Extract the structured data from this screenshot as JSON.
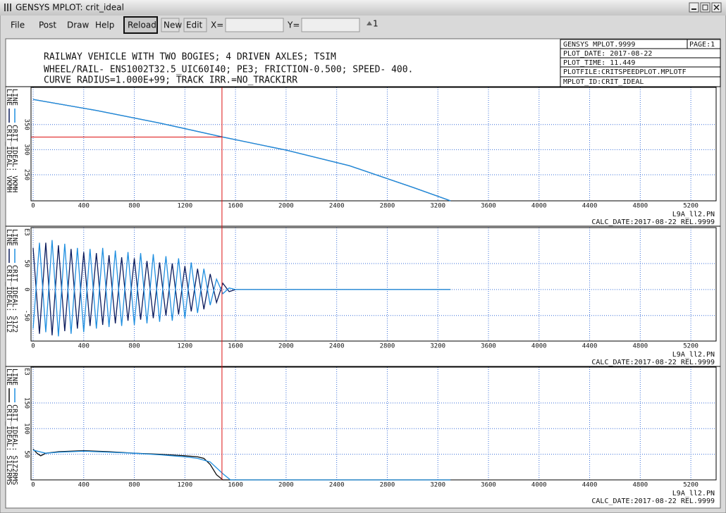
{
  "window": {
    "title": "GENSYS MPLOT: crit_ideal"
  },
  "menu": [
    "File",
    "Post",
    "Draw",
    "Help"
  ],
  "toolbar": {
    "buttons": [
      "Reload",
      "New",
      "Edit"
    ],
    "x_label": "X=",
    "y_label": "Y=",
    "page": 1
  },
  "header": {
    "lines": [
      "RAILWAY VEHICLE WITH TWO BOGIES; 4 DRIVEN AXLES; TSIM",
      "WHEEL/RAIL- ENS1002T32.5_UIC60I40; PE3; FRICTION-0.500; SPEED- 400.",
      "CURVE RADIUS=1.000E+99; TRACK IRR.=NO_TRACKIRR"
    ],
    "info": {
      "program": "GENSYS MPLOT.9999",
      "page": "PAGE:1",
      "plot_date": "PLOT_DATE: 2017-08-22",
      "plot_time": "PLOT_TIME: 11.449",
      "plotfile": "PLOTFILE:CRITSPEEDPLOT.MPLOTF",
      "mplot_id": "MPLOT_ID:CRIT_IDEAL"
    }
  },
  "cursor": {
    "x": 1493,
    "y": 325
  },
  "plots": [
    {
      "xlim": [
        0,
        5400
      ],
      "ylim": [
        198,
        424
      ],
      "yticks": [
        250,
        300,
        350
      ],
      "xticks": [
        0,
        400,
        800,
        1200,
        1600,
        2000,
        2400,
        2800,
        3200,
        3600,
        4000,
        4400,
        4800,
        5200
      ],
      "file_label": "L9A_ll2.PN",
      "calc_date": "CALC_DATE:2017-08-22 REL.9999",
      "series": [
        {
          "kind": "LINE",
          "name": "CRIT_IDEAL: VKMH",
          "color": "#0a1a5c",
          "x": [
            0,
            500,
            1000,
            1500,
            2000,
            2500,
            3000,
            3300
          ],
          "values": [
            400,
            378,
            353,
            325,
            299,
            268,
            225,
            198
          ]
        },
        {
          "kind": "LINE",
          "name": "CRIT_IDEAL: VKMH",
          "color": "#1f8fe0",
          "x": [
            0,
            500,
            1000,
            1500,
            2000,
            2500,
            3000,
            3300
          ],
          "values": [
            400,
            378,
            353,
            325,
            299,
            268,
            225,
            198
          ]
        }
      ]
    },
    {
      "xlim": [
        0,
        5400
      ],
      "ylim": [
        -99,
        119
      ],
      "yticks": [
        -50,
        0,
        50
      ],
      "y_exponent": "E3",
      "xticks": [
        0,
        400,
        800,
        1200,
        1600,
        2000,
        2400,
        2800,
        3200,
        3600,
        4000,
        4400,
        4800,
        5200
      ],
      "file_label": "L9A_ll2.PN",
      "calc_date": "CALC_DATE:2017-08-22 REL.9999",
      "series": [
        {
          "kind": "LINE",
          "name": "CRIT_IDEAL: S1L2",
          "color": "#0a1a5c",
          "x": [
            0,
            50,
            100,
            150,
            200,
            250,
            300,
            350,
            400,
            450,
            500,
            550,
            600,
            650,
            700,
            750,
            800,
            850,
            900,
            950,
            1000,
            1050,
            1100,
            1150,
            1200,
            1250,
            1300,
            1350,
            1400,
            1450,
            1500,
            1550,
            1600,
            3300
          ],
          "values": [
            80,
            -85,
            90,
            -88,
            85,
            -80,
            78,
            -75,
            72,
            -70,
            70,
            -68,
            66,
            -65,
            62,
            -60,
            60,
            -58,
            55,
            -55,
            52,
            -50,
            50,
            -48,
            45,
            -42,
            40,
            -38,
            30,
            -25,
            12,
            -4,
            0,
            0
          ]
        },
        {
          "kind": "LINE",
          "name": "CRIT_IDEAL: S1Z2",
          "color": "#1f8fe0",
          "x": [
            0,
            50,
            100,
            150,
            200,
            250,
            300,
            350,
            400,
            450,
            500,
            550,
            600,
            650,
            700,
            750,
            800,
            850,
            900,
            950,
            1000,
            1050,
            1100,
            1150,
            1200,
            1250,
            1300,
            1350,
            1400,
            1450,
            1500,
            1550,
            1600,
            3300
          ],
          "values": [
            -75,
            90,
            -82,
            95,
            -90,
            88,
            -85,
            80,
            -82,
            78,
            -75,
            80,
            -72,
            75,
            -70,
            72,
            -68,
            70,
            -65,
            68,
            -62,
            64,
            -60,
            60,
            -55,
            52,
            -45,
            40,
            -30,
            20,
            -8,
            3,
            0,
            0
          ]
        }
      ]
    },
    {
      "xlim": [
        0,
        5400
      ],
      "ylim": [
        0,
        220
      ],
      "yticks": [
        50,
        100,
        150
      ],
      "y_exponent": "E3",
      "xticks": [
        0,
        400,
        800,
        1200,
        1600,
        2000,
        2400,
        2800,
        3200,
        3600,
        4000,
        4400,
        4800,
        5200
      ],
      "file_label": "L9A_ll2.PN",
      "calc_date": "CALC_DATE:2017-08-22 REL.9999",
      "series": [
        {
          "kind": "LINE",
          "name": "CRIT_IDEAL: S1L2RMS",
          "color": "#0a0a0a",
          "x": [
            0,
            30,
            60,
            100,
            200,
            400,
            600,
            800,
            1000,
            1200,
            1300,
            1350,
            1400,
            1450,
            1500,
            3300
          ],
          "values": [
            60,
            52,
            47,
            52,
            55,
            57,
            55,
            52,
            50,
            47,
            45,
            42,
            30,
            10,
            0,
            0
          ]
        },
        {
          "kind": "LINE",
          "name": "CRIT_IDEAL: S1Z2RMS",
          "color": "#1f8fe0",
          "x": [
            0,
            100,
            200,
            400,
            600,
            800,
            1000,
            1200,
            1300,
            1400,
            1500,
            1560,
            3300
          ],
          "values": [
            58,
            52,
            54,
            56,
            54,
            52,
            49,
            45,
            42,
            35,
            12,
            0,
            0
          ]
        }
      ]
    }
  ]
}
